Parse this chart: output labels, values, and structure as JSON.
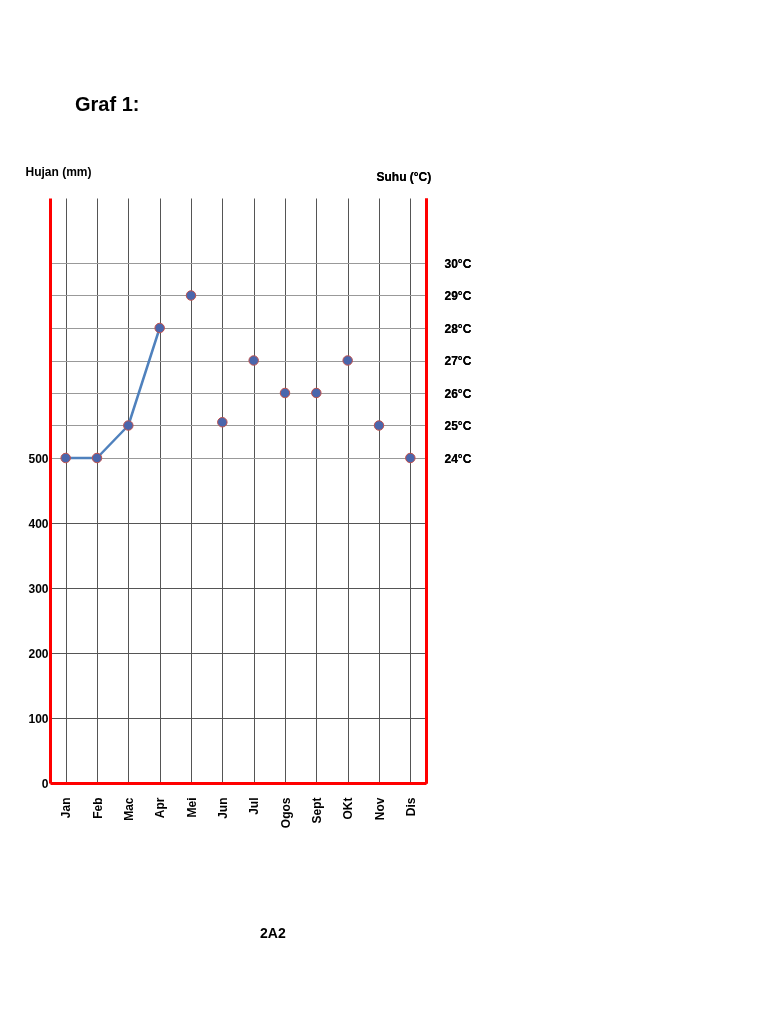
{
  "chart_data": {
    "type": "scatter",
    "title": "Graf 1:",
    "ylabel": "Hujan (mm)",
    "y2label": "Suhu (°C)",
    "annotations": [
      "2A2"
    ],
    "categories": [
      "Jan",
      "Feb",
      "Mac",
      "Apr",
      "Mei",
      "Jun",
      "Jul",
      "Ogos",
      "Sept",
      "OKt",
      "Nov",
      "Dis"
    ],
    "series": [
      {
        "type": "line",
        "axis": "y2",
        "color": "#4f81bd",
        "values": [
          24,
          24,
          25,
          28,
          null,
          null,
          null,
          null,
          null,
          null,
          null,
          null
        ]
      },
      {
        "axis": "y2",
        "color": "#4a66ac",
        "values": [
          24,
          24,
          25,
          28,
          29,
          25.1,
          27,
          26,
          26,
          27,
          25,
          24
        ]
      }
    ],
    "ylim": [
      0,
      900
    ],
    "yticks": [
      0,
      100,
      200,
      300,
      400,
      500
    ],
    "y2lim": [
      14,
      32
    ],
    "y2ticks": [
      {
        "value": 24,
        "label": "24°C"
      },
      {
        "value": 25,
        "label": "25°C"
      },
      {
        "value": 26,
        "label": "26°C"
      },
      {
        "value": 27,
        "label": "27°C"
      },
      {
        "value": 28,
        "label": "28°C"
      },
      {
        "value": 29,
        "label": "29°C"
      },
      {
        "value": 30,
        "label": "30°C"
      }
    ],
    "grid": true,
    "marker": "circle",
    "line_style": "solid"
  }
}
